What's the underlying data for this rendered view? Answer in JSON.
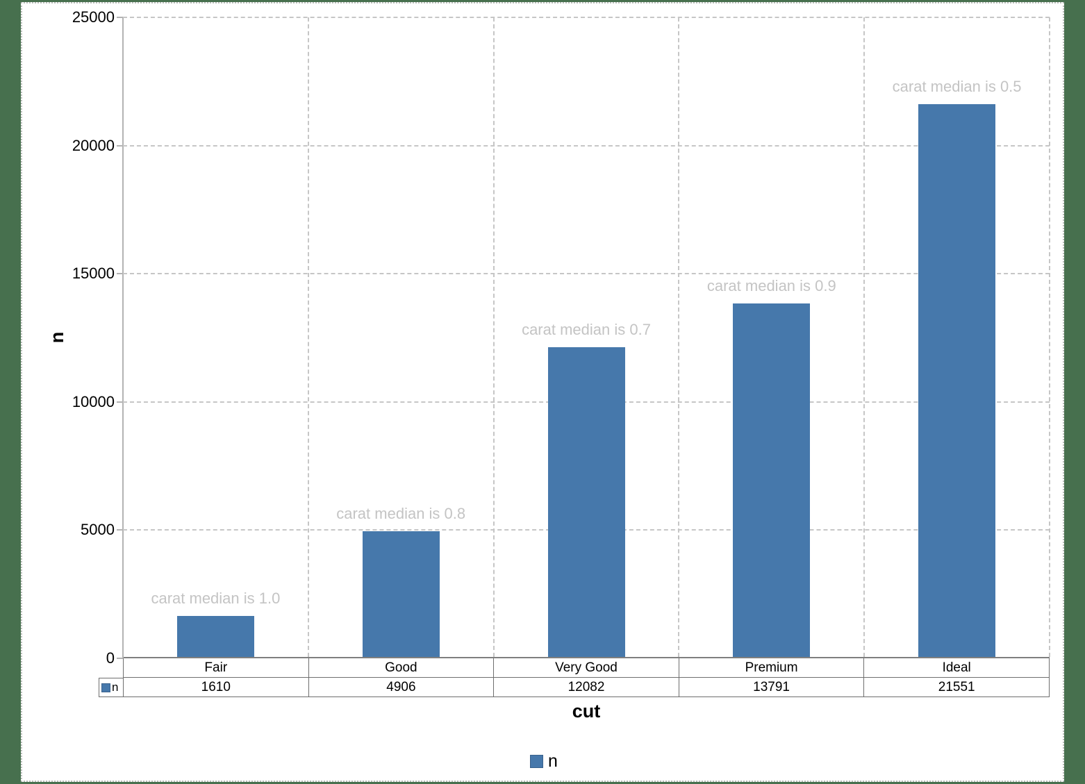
{
  "chart_data": {
    "type": "bar",
    "title": "",
    "categories": [
      "Fair",
      "Good",
      "Very Good",
      "Premium",
      "Ideal"
    ],
    "series": [
      {
        "name": "n",
        "values": [
          1610,
          4906,
          12082,
          13791,
          21551
        ]
      }
    ],
    "bar_annotations": [
      "carat median is 1.0",
      "carat median is 0.8",
      "carat median is 0.7",
      "carat median is 0.9",
      "carat median is 0.5"
    ],
    "xlabel": "cut",
    "ylabel": "n",
    "ylim": [
      0,
      25000
    ],
    "yticks": [
      0,
      5000,
      10000,
      15000,
      20000,
      25000
    ],
    "grid": "dashed horizontal and vertical",
    "legend": {
      "position": "bottom",
      "entries": [
        {
          "label": "n",
          "color": "#4678AB"
        }
      ]
    },
    "data_table": {
      "shown": true,
      "row_header": "n",
      "values": [
        "1610",
        "4906",
        "12082",
        "13791",
        "21551"
      ]
    },
    "colors": {
      "bar": "#4678AB",
      "annotation_text": "#C4C4C4",
      "gridline": "#C6C6C6",
      "axis_line": "#B3B3B3",
      "x_axis_line": "#7F7F7F",
      "table_border": "#6E6E6E",
      "background": "#FFFFFF",
      "frame_background": "#47704E"
    }
  }
}
